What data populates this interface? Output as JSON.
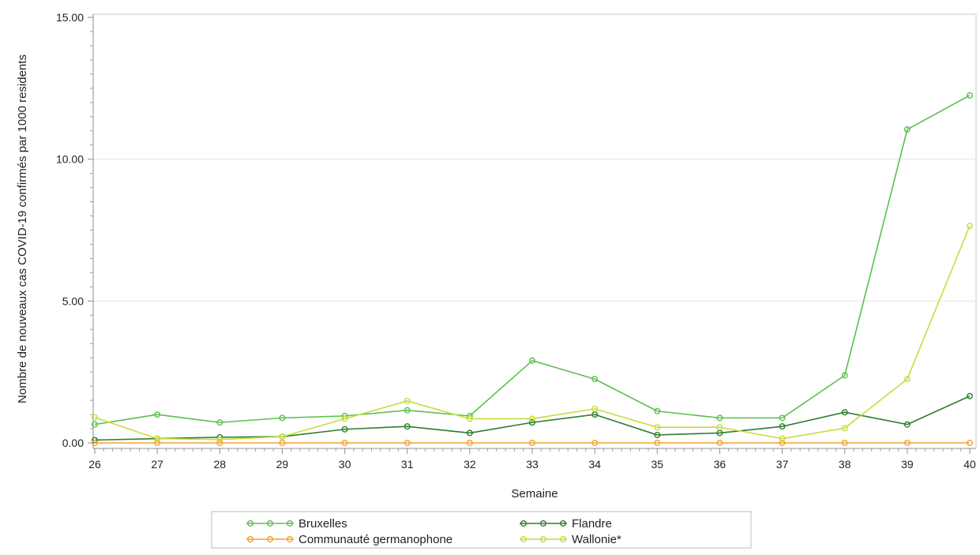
{
  "chart_data": {
    "type": "line",
    "title": "",
    "xlabel": "Semaine",
    "ylabel": "Nombre de nouveaux cas COVID-19 confirmés par 1000 residents",
    "x": [
      26,
      27,
      28,
      29,
      30,
      31,
      32,
      33,
      34,
      35,
      36,
      37,
      38,
      39,
      40
    ],
    "xlim": [
      26,
      40
    ],
    "ylim": [
      0,
      15
    ],
    "y_ticks": [
      "0.00",
      "5.00",
      "10.00",
      "15.00"
    ],
    "y_tick_values": [
      0,
      5,
      10,
      15
    ],
    "grid": "horizontal",
    "legend_position": "bottom",
    "series": [
      {
        "name": "Bruxelles",
        "color": "#5cbf4e",
        "values": [
          0.65,
          1.0,
          0.72,
          0.88,
          0.95,
          1.15,
          0.95,
          2.9,
          2.25,
          1.12,
          0.88,
          0.88,
          2.38,
          11.05,
          12.25
        ]
      },
      {
        "name": "Flandre",
        "color": "#2e7d32",
        "values": [
          0.1,
          0.15,
          0.2,
          0.22,
          0.48,
          0.58,
          0.35,
          0.72,
          1.0,
          0.28,
          0.35,
          0.58,
          1.08,
          0.65,
          1.65
        ]
      },
      {
        "name": "Communauté germanophone",
        "color": "#f5a030",
        "values": [
          0,
          0,
          0,
          0,
          0,
          0,
          0,
          0,
          0,
          0,
          0,
          0,
          0,
          0,
          0
        ]
      },
      {
        "name": "Wallonie*",
        "color": "#c8dc3c",
        "values": [
          0.9,
          0.15,
          0.12,
          0.22,
          0.85,
          1.48,
          0.85,
          0.85,
          1.2,
          0.55,
          0.55,
          0.15,
          0.52,
          2.25,
          7.65
        ]
      }
    ]
  }
}
